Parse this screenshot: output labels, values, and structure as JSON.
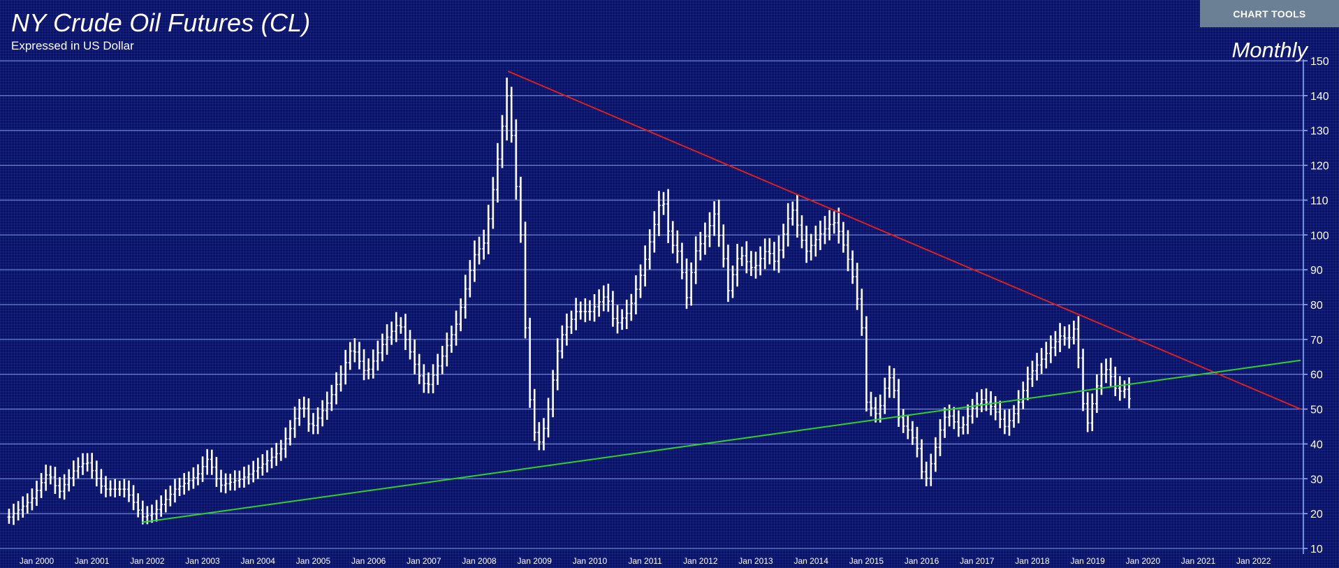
{
  "header": {
    "title": "NY Crude Oil Futures (CL)",
    "subtitle": "Expressed in US Dollar",
    "period": "Monthly",
    "tools_label": "CHART TOOLS"
  },
  "colors": {
    "background": "#0b1266",
    "bars": "#ffffff",
    "gridline": "#9ab3ff",
    "resistance_line": "#d82020",
    "support_line": "#2fd12f",
    "tools_button": "#6b7f95"
  },
  "chart_data": {
    "type": "ohlc-bar",
    "title": "NY Crude Oil Futures (CL)",
    "subtitle": "Expressed in US Dollar",
    "y_axis_position": "right",
    "ylim": [
      10,
      150
    ],
    "y_ticks": [
      10,
      20,
      30,
      40,
      50,
      60,
      70,
      80,
      90,
      100,
      110,
      120,
      130,
      140,
      150
    ],
    "xlim": [
      1999.4,
      2022.9
    ],
    "x_ticks": [
      {
        "year": 2000,
        "label": "Jan 2000"
      },
      {
        "year": 2001,
        "label": "Jan 2001"
      },
      {
        "year": 2002,
        "label": "Jan 2002"
      },
      {
        "year": 2003,
        "label": "Jan 2003"
      },
      {
        "year": 2004,
        "label": "Jan 2004"
      },
      {
        "year": 2005,
        "label": "Jan 2005"
      },
      {
        "year": 2006,
        "label": "Jan 2006"
      },
      {
        "year": 2007,
        "label": "Jan 2007"
      },
      {
        "year": 2008,
        "label": "Jan 2008"
      },
      {
        "year": 2009,
        "label": "Jan 2009"
      },
      {
        "year": 2010,
        "label": "Jan 2010"
      },
      {
        "year": 2011,
        "label": "Jan 2011"
      },
      {
        "year": 2012,
        "label": "Jan 2012"
      },
      {
        "year": 2013,
        "label": "Jan 2013"
      },
      {
        "year": 2014,
        "label": "Jan 2014"
      },
      {
        "year": 2015,
        "label": "Jan 2015"
      },
      {
        "year": 2016,
        "label": "Jan 2016"
      },
      {
        "year": 2017,
        "label": "Jan 2017"
      },
      {
        "year": 2018,
        "label": "Jan 2018"
      },
      {
        "year": 2019,
        "label": "Jan 2019"
      },
      {
        "year": 2020,
        "label": "Jan 2020"
      },
      {
        "year": 2021,
        "label": "Jan 2021"
      },
      {
        "year": 2022,
        "label": "Jan 2022"
      }
    ],
    "grid": true,
    "keypoints": [
      {
        "date": 1999.5,
        "price": 19
      },
      {
        "date": 1999.9,
        "price": 24
      },
      {
        "date": 2000.2,
        "price": 32
      },
      {
        "date": 2000.4,
        "price": 26
      },
      {
        "date": 2000.7,
        "price": 33
      },
      {
        "date": 2000.9,
        "price": 35
      },
      {
        "date": 2001.2,
        "price": 27
      },
      {
        "date": 2001.6,
        "price": 27
      },
      {
        "date": 2001.8,
        "price": 22
      },
      {
        "date": 2001.9,
        "price": 19
      },
      {
        "date": 2002.1,
        "price": 20
      },
      {
        "date": 2002.5,
        "price": 27
      },
      {
        "date": 2002.9,
        "price": 31
      },
      {
        "date": 2003.1,
        "price": 36
      },
      {
        "date": 2003.3,
        "price": 28
      },
      {
        "date": 2003.7,
        "price": 30
      },
      {
        "date": 2003.9,
        "price": 32
      },
      {
        "date": 2004.4,
        "price": 38
      },
      {
        "date": 2004.8,
        "price": 52
      },
      {
        "date": 2004.95,
        "price": 44
      },
      {
        "date": 2005.3,
        "price": 53
      },
      {
        "date": 2005.5,
        "price": 60
      },
      {
        "date": 2005.7,
        "price": 68
      },
      {
        "date": 2005.95,
        "price": 60
      },
      {
        "date": 2006.3,
        "price": 70
      },
      {
        "date": 2006.55,
        "price": 75
      },
      {
        "date": 2006.9,
        "price": 60
      },
      {
        "date": 2007.05,
        "price": 56
      },
      {
        "date": 2007.3,
        "price": 64
      },
      {
        "date": 2007.6,
        "price": 75
      },
      {
        "date": 2007.9,
        "price": 94
      },
      {
        "date": 2008.1,
        "price": 98
      },
      {
        "date": 2008.3,
        "price": 118
      },
      {
        "date": 2008.45,
        "price": 135
      },
      {
        "date": 2008.52,
        "price": 142
      },
      {
        "date": 2008.6,
        "price": 125
      },
      {
        "date": 2008.75,
        "price": 100
      },
      {
        "date": 2008.85,
        "price": 68
      },
      {
        "date": 2008.95,
        "price": 45
      },
      {
        "date": 2009.1,
        "price": 40
      },
      {
        "date": 2009.25,
        "price": 50
      },
      {
        "date": 2009.45,
        "price": 70
      },
      {
        "date": 2009.75,
        "price": 78
      },
      {
        "date": 2010.0,
        "price": 78
      },
      {
        "date": 2010.3,
        "price": 83
      },
      {
        "date": 2010.45,
        "price": 74
      },
      {
        "date": 2010.7,
        "price": 78
      },
      {
        "date": 2010.95,
        "price": 90
      },
      {
        "date": 2011.2,
        "price": 105
      },
      {
        "date": 2011.3,
        "price": 112
      },
      {
        "date": 2011.45,
        "price": 98
      },
      {
        "date": 2011.6,
        "price": 95
      },
      {
        "date": 2011.75,
        "price": 82
      },
      {
        "date": 2011.9,
        "price": 95
      },
      {
        "date": 2012.1,
        "price": 100
      },
      {
        "date": 2012.25,
        "price": 106
      },
      {
        "date": 2012.4,
        "price": 95
      },
      {
        "date": 2012.5,
        "price": 84
      },
      {
        "date": 2012.7,
        "price": 95
      },
      {
        "date": 2012.95,
        "price": 90
      },
      {
        "date": 2013.2,
        "price": 96
      },
      {
        "date": 2013.35,
        "price": 92
      },
      {
        "date": 2013.55,
        "price": 103
      },
      {
        "date": 2013.65,
        "price": 108
      },
      {
        "date": 2013.9,
        "price": 95
      },
      {
        "date": 2014.2,
        "price": 101
      },
      {
        "date": 2014.4,
        "price": 104
      },
      {
        "date": 2014.5,
        "price": 101
      },
      {
        "date": 2014.65,
        "price": 94
      },
      {
        "date": 2014.8,
        "price": 85
      },
      {
        "date": 2014.95,
        "price": 70
      },
      {
        "date": 2015.0,
        "price": 52
      },
      {
        "date": 2015.2,
        "price": 48
      },
      {
        "date": 2015.35,
        "price": 57
      },
      {
        "date": 2015.45,
        "price": 60
      },
      {
        "date": 2015.6,
        "price": 46
      },
      {
        "date": 2015.75,
        "price": 44
      },
      {
        "date": 2015.9,
        "price": 40
      },
      {
        "date": 2016.0,
        "price": 32
      },
      {
        "date": 2016.08,
        "price": 30
      },
      {
        "date": 2016.2,
        "price": 36
      },
      {
        "date": 2016.35,
        "price": 45
      },
      {
        "date": 2016.45,
        "price": 49
      },
      {
        "date": 2016.7,
        "price": 44
      },
      {
        "date": 2016.9,
        "price": 50
      },
      {
        "date": 2017.1,
        "price": 53
      },
      {
        "date": 2017.3,
        "price": 50
      },
      {
        "date": 2017.5,
        "price": 45
      },
      {
        "date": 2017.65,
        "price": 48
      },
      {
        "date": 2017.8,
        "price": 54
      },
      {
        "date": 2017.95,
        "price": 60
      },
      {
        "date": 2018.1,
        "price": 63
      },
      {
        "date": 2018.3,
        "price": 67
      },
      {
        "date": 2018.5,
        "price": 71
      },
      {
        "date": 2018.65,
        "price": 70
      },
      {
        "date": 2018.75,
        "price": 73
      },
      {
        "date": 2018.85,
        "price": 63
      },
      {
        "date": 2018.92,
        "price": 51
      },
      {
        "date": 2019.0,
        "price": 46
      },
      {
        "date": 2019.15,
        "price": 56
      },
      {
        "date": 2019.3,
        "price": 62
      },
      {
        "date": 2019.4,
        "price": 60
      },
      {
        "date": 2019.5,
        "price": 56
      },
      {
        "date": 2019.6,
        "price": 55
      },
      {
        "date": 2019.7,
        "price": 56
      },
      {
        "date": 2019.75,
        "price": 53
      }
    ],
    "trendlines": [
      {
        "name": "resistance",
        "color": "#d82020",
        "points": [
          [
            2008.52,
            147
          ],
          [
            2022.85,
            50
          ]
        ]
      },
      {
        "name": "support",
        "color": "#2fd12f",
        "points": [
          [
            2001.9,
            17.5
          ],
          [
            2022.85,
            64
          ]
        ]
      }
    ]
  }
}
